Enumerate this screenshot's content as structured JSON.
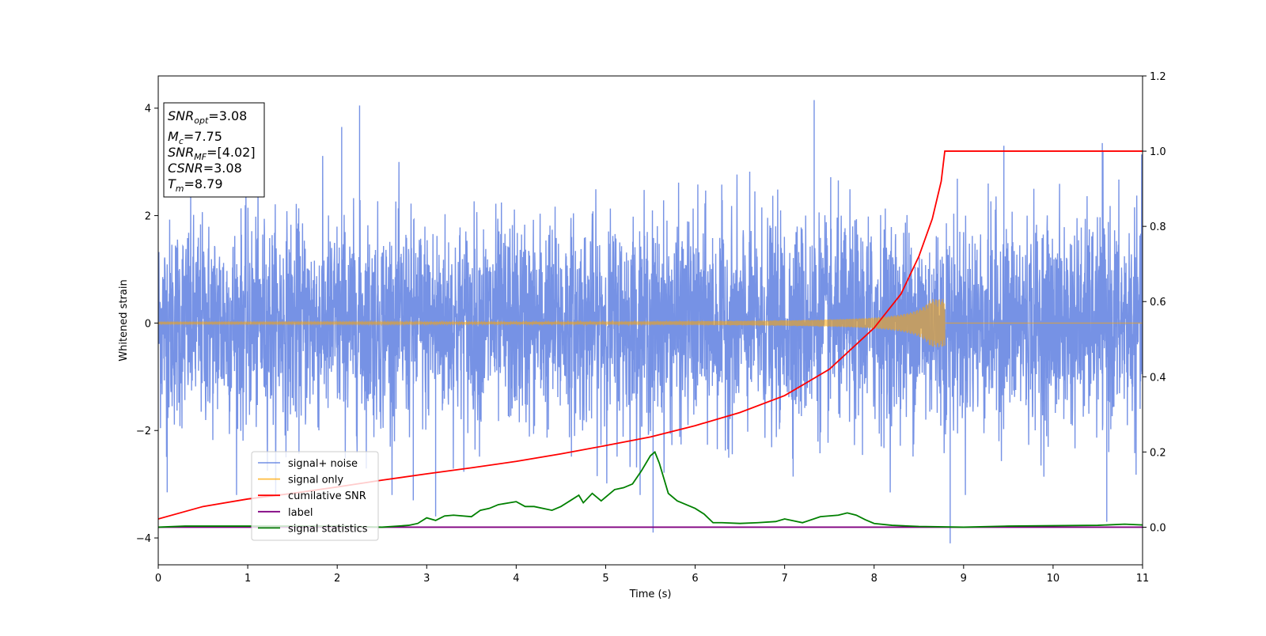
{
  "chart_data": {
    "type": "line",
    "xlabel": "Time (s)",
    "ylabel": "Whitened strain",
    "xlim": [
      0,
      11
    ],
    "ylim_left": [
      -4.5,
      4.6
    ],
    "ylim_right": [
      -0.1,
      1.2
    ],
    "x_ticks": [
      "0",
      "1",
      "2",
      "3",
      "4",
      "5",
      "6",
      "7",
      "8",
      "9",
      "10",
      "11"
    ],
    "y_left_ticks": [
      "4",
      "2",
      "0",
      "−2",
      "−4"
    ],
    "y_left_tick_values": [
      4,
      2,
      0,
      -2,
      -4
    ],
    "y_right_ticks": [
      "1.2",
      "1.0",
      "0.8",
      "0.6",
      "0.4",
      "0.2",
      "0.0"
    ],
    "y_right_tick_values": [
      1.2,
      1.0,
      0.8,
      0.6,
      0.4,
      0.2,
      0.0
    ],
    "grid": false,
    "legend_placement": "lower-left",
    "annotation_box": [
      {
        "base": "SNR",
        "sub": "opt",
        "value": "=3.08"
      },
      {
        "base": "M",
        "sub": "c",
        "value": "=7.75"
      },
      {
        "base": "SNR",
        "sub": "MF",
        "value": "=[4.02]"
      },
      {
        "base": "CSNR",
        "sub": "",
        "value": "=3.08"
      },
      {
        "base": "T",
        "sub": "m",
        "value": "=8.79"
      }
    ],
    "series": [
      {
        "name": "signal+ noise",
        "color": "#5e7fe0",
        "axis": "left",
        "description_amplitude": 1.6,
        "spike_peaks": [
          [
            2.05,
            3.65
          ],
          [
            2.25,
            4.05
          ],
          [
            7.33,
            4.15
          ],
          [
            9.45,
            3.3
          ],
          [
            10.55,
            3.35
          ],
          [
            8.85,
            -4.1
          ],
          [
            5.53,
            -3.9
          ],
          [
            3.1,
            -3.6
          ],
          [
            10.6,
            -3.7
          ],
          [
            0.1,
            -3.15
          ],
          [
            2.85,
            -3.3
          ]
        ]
      },
      {
        "name": "signal only",
        "color": "#ffa500",
        "axis": "left",
        "end_time": 8.79,
        "peak_amplitude": 0.45
      },
      {
        "name": "cumilative SNR",
        "color": "#ff0000",
        "axis": "right",
        "x": [
          0,
          0.5,
          1,
          1.5,
          2,
          2.5,
          3,
          3.5,
          4,
          4.5,
          5,
          5.5,
          6,
          6.5,
          7,
          7.5,
          8,
          8.3,
          8.5,
          8.65,
          8.75,
          8.79,
          9,
          10,
          11
        ],
        "y": [
          0.022,
          0.055,
          0.075,
          0.09,
          0.107,
          0.125,
          0.142,
          0.158,
          0.175,
          0.195,
          0.217,
          0.24,
          0.27,
          0.305,
          0.35,
          0.42,
          0.53,
          0.62,
          0.72,
          0.82,
          0.92,
          1.0,
          1.0,
          1.0,
          1.0
        ]
      },
      {
        "name": "label",
        "color": "#800080",
        "axis": "right",
        "x": [
          0,
          11
        ],
        "y": [
          0,
          0
        ]
      },
      {
        "name": "signal statistics",
        "color": "#008000",
        "axis": "right",
        "x": [
          0,
          0.3,
          1,
          2,
          2.5,
          2.8,
          2.9,
          3.0,
          3.1,
          3.2,
          3.3,
          3.5,
          3.6,
          3.7,
          3.8,
          4.0,
          4.1,
          4.2,
          4.4,
          4.5,
          4.6,
          4.7,
          4.75,
          4.85,
          4.95,
          5.0,
          5.1,
          5.2,
          5.3,
          5.4,
          5.5,
          5.55,
          5.6,
          5.7,
          5.8,
          5.9,
          6.0,
          6.1,
          6.2,
          6.3,
          6.5,
          6.7,
          6.9,
          7.0,
          7.2,
          7.4,
          7.6,
          7.7,
          7.8,
          7.9,
          8.0,
          8.2,
          8.5,
          9.0,
          9.5,
          10.0,
          10.5,
          10.8,
          11.0
        ],
        "y": [
          0.0,
          0.003,
          0.003,
          0.003,
          0.0,
          0.005,
          0.01,
          0.025,
          0.018,
          0.03,
          0.032,
          0.028,
          0.045,
          0.05,
          0.06,
          0.068,
          0.055,
          0.055,
          0.045,
          0.055,
          0.07,
          0.085,
          0.065,
          0.09,
          0.07,
          0.08,
          0.1,
          0.105,
          0.115,
          0.15,
          0.19,
          0.2,
          0.17,
          0.09,
          0.07,
          0.06,
          0.05,
          0.035,
          0.012,
          0.012,
          0.01,
          0.012,
          0.015,
          0.022,
          0.012,
          0.028,
          0.032,
          0.038,
          0.032,
          0.02,
          0.01,
          0.005,
          0.002,
          0.0,
          0.003,
          0.004,
          0.005,
          0.008,
          0.006
        ]
      }
    ]
  }
}
